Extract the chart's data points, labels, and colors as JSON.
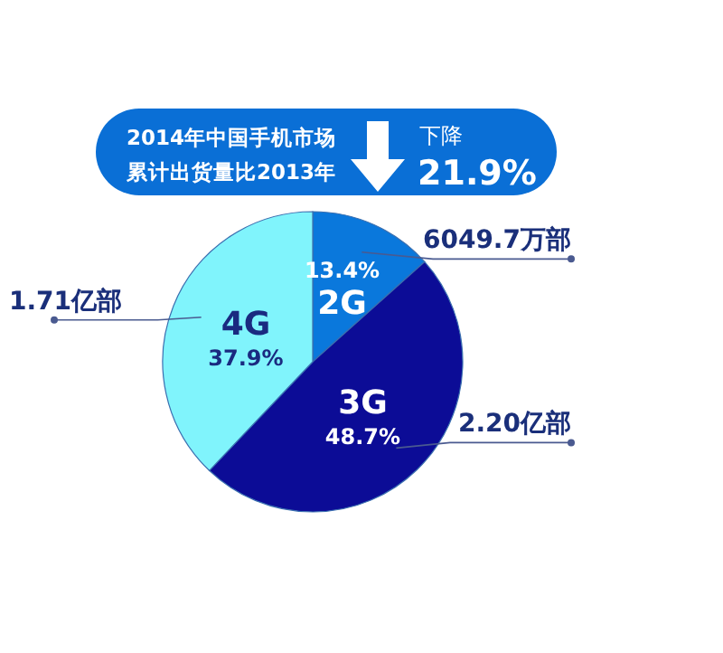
{
  "chart_data": {
    "type": "pie",
    "title": "2014年中国手机市场",
    "subtitle": "累计出货量比2013年",
    "categories": [
      "2G",
      "3G",
      "4G"
    ],
    "values": [
      13.4,
      48.7,
      37.9
    ],
    "colors": [
      "#0a78dc",
      "#0c0c96",
      "#80f4fc"
    ],
    "value_labels": [
      "13.4%",
      "48.7%",
      "37.9%"
    ],
    "annotations": [
      "下降",
      "21.9%",
      {
        "text": "6049.7万部",
        "x": "2G"
      },
      {
        "text": "2.20亿部",
        "x": "3G"
      },
      {
        "text": "1.71亿部",
        "x": "4G"
      }
    ]
  }
}
